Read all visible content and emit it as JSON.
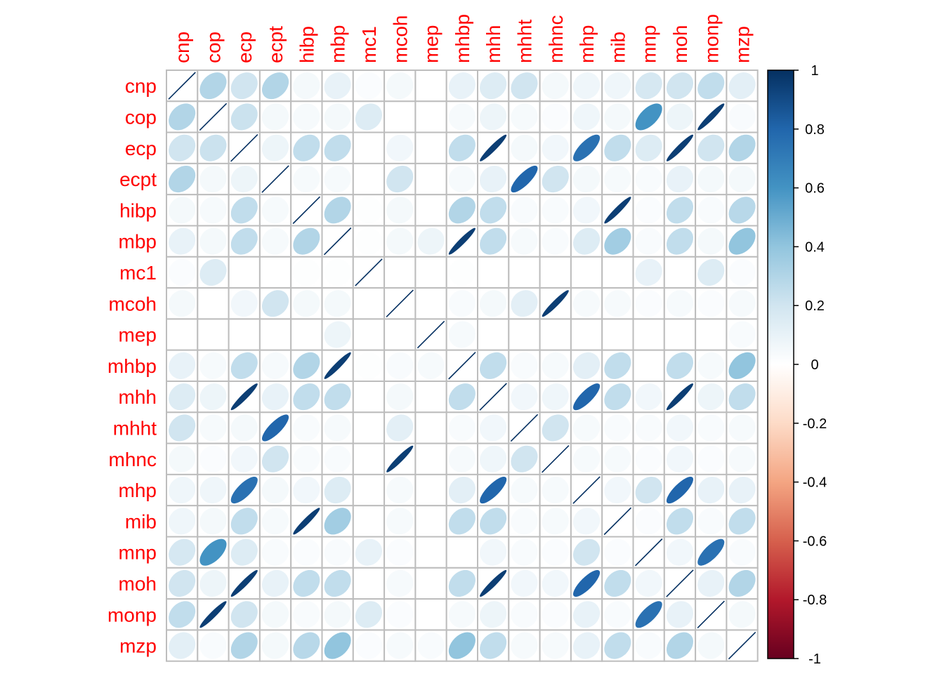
{
  "chart_data": {
    "type": "heatmap",
    "method": "ellipse",
    "variables": [
      "cnp",
      "cop",
      "ecp",
      "ecpt",
      "hibp",
      "mbp",
      "mc1",
      "mcoh",
      "mep",
      "mhbp",
      "mhh",
      "mhht",
      "mhnc",
      "mhp",
      "mib",
      "mnp",
      "moh",
      "monp",
      "mzp"
    ],
    "matrix": [
      [
        1.0,
        0.3,
        0.2,
        0.3,
        0.05,
        0.1,
        0.02,
        0.05,
        0.0,
        0.1,
        0.15,
        0.2,
        0.05,
        0.07,
        0.07,
        0.18,
        0.2,
        0.25,
        0.12
      ],
      [
        0.3,
        1.0,
        0.22,
        0.05,
        0.04,
        0.05,
        0.15,
        0.0,
        0.0,
        0.04,
        0.08,
        0.04,
        0.02,
        0.07,
        0.05,
        0.6,
        0.08,
        0.95,
        0.03
      ],
      [
        0.2,
        0.22,
        1.0,
        0.08,
        0.25,
        0.25,
        0.0,
        0.06,
        0.0,
        0.25,
        0.95,
        0.05,
        0.06,
        0.75,
        0.25,
        0.15,
        0.95,
        0.2,
        0.3
      ],
      [
        0.3,
        0.05,
        0.08,
        1.0,
        0.04,
        0.04,
        0.0,
        0.2,
        0.0,
        0.04,
        0.1,
        0.8,
        0.2,
        0.05,
        0.04,
        0.03,
        0.1,
        0.05,
        0.05
      ],
      [
        0.05,
        0.04,
        0.25,
        0.04,
        1.0,
        0.3,
        0.01,
        0.05,
        0.0,
        0.3,
        0.25,
        0.03,
        0.03,
        0.06,
        0.95,
        0.02,
        0.25,
        0.03,
        0.28
      ],
      [
        0.1,
        0.05,
        0.25,
        0.04,
        0.3,
        1.0,
        0.01,
        0.05,
        0.08,
        0.95,
        0.25,
        0.04,
        0.03,
        0.15,
        0.35,
        0.03,
        0.25,
        0.05,
        0.4
      ],
      [
        0.02,
        0.15,
        0.0,
        0.0,
        0.01,
        0.01,
        1.0,
        0.0,
        0.0,
        0.01,
        0.0,
        0.0,
        0.0,
        0.0,
        0.0,
        0.1,
        0.0,
        0.15,
        0.02
      ],
      [
        0.05,
        0.0,
        0.06,
        0.2,
        0.05,
        0.05,
        0.0,
        1.0,
        0.0,
        0.03,
        0.05,
        0.12,
        0.95,
        0.04,
        0.04,
        0.02,
        0.04,
        0.02,
        0.04
      ],
      [
        0.0,
        0.0,
        0.0,
        0.0,
        0.0,
        0.08,
        0.0,
        0.0,
        1.0,
        0.04,
        0.0,
        0.0,
        0.0,
        0.0,
        0.0,
        0.0,
        0.0,
        0.0,
        0.03
      ],
      [
        0.1,
        0.04,
        0.25,
        0.04,
        0.3,
        0.95,
        0.01,
        0.03,
        0.04,
        1.0,
        0.25,
        0.03,
        0.04,
        0.12,
        0.25,
        0.0,
        0.25,
        0.04,
        0.4
      ],
      [
        0.15,
        0.08,
        0.95,
        0.1,
        0.25,
        0.25,
        0.0,
        0.05,
        0.0,
        0.25,
        1.0,
        0.06,
        0.07,
        0.8,
        0.25,
        0.06,
        0.95,
        0.08,
        0.25
      ],
      [
        0.2,
        0.04,
        0.05,
        0.8,
        0.03,
        0.04,
        0.0,
        0.12,
        0.0,
        0.03,
        0.06,
        1.0,
        0.2,
        0.04,
        0.03,
        0.03,
        0.06,
        0.03,
        0.04
      ],
      [
        0.05,
        0.02,
        0.06,
        0.2,
        0.03,
        0.03,
        0.0,
        0.95,
        0.0,
        0.04,
        0.07,
        0.2,
        1.0,
        0.04,
        0.04,
        0.02,
        0.06,
        0.02,
        0.04
      ],
      [
        0.07,
        0.07,
        0.75,
        0.05,
        0.06,
        0.15,
        0.0,
        0.04,
        0.0,
        0.12,
        0.8,
        0.04,
        0.04,
        1.0,
        0.06,
        0.2,
        0.8,
        0.1,
        0.1
      ],
      [
        0.07,
        0.05,
        0.25,
        0.04,
        0.95,
        0.35,
        0.0,
        0.04,
        0.0,
        0.25,
        0.25,
        0.03,
        0.04,
        0.06,
        1.0,
        0.02,
        0.25,
        0.03,
        0.25
      ],
      [
        0.18,
        0.6,
        0.15,
        0.03,
        0.02,
        0.03,
        0.1,
        0.02,
        0.0,
        0.0,
        0.06,
        0.03,
        0.02,
        0.2,
        0.02,
        1.0,
        0.06,
        0.75,
        0.03
      ],
      [
        0.2,
        0.08,
        0.95,
        0.1,
        0.25,
        0.25,
        0.0,
        0.04,
        0.0,
        0.25,
        0.95,
        0.06,
        0.06,
        0.8,
        0.25,
        0.06,
        1.0,
        0.1,
        0.3
      ],
      [
        0.25,
        0.95,
        0.2,
        0.05,
        0.03,
        0.05,
        0.15,
        0.02,
        0.0,
        0.04,
        0.08,
        0.03,
        0.02,
        0.1,
        0.03,
        0.75,
        0.1,
        1.0,
        0.05
      ],
      [
        0.12,
        0.03,
        0.3,
        0.05,
        0.28,
        0.4,
        0.02,
        0.04,
        0.03,
        0.4,
        0.25,
        0.04,
        0.04,
        0.1,
        0.25,
        0.03,
        0.3,
        0.05,
        1.0
      ]
    ],
    "colorbar": {
      "ticks": [
        "1",
        "0.8",
        "0.6",
        "0.4",
        "0.2",
        "0",
        "-0.2",
        "-0.4",
        "-0.6",
        "-0.8",
        "-1"
      ],
      "range": [
        -1,
        1
      ],
      "colors": [
        "#67001F",
        "#B2182B",
        "#D6604D",
        "#F4A582",
        "#FDDBC7",
        "#FFFFFF",
        "#D1E5F0",
        "#92C5DE",
        "#4393C3",
        "#2166AC",
        "#053061"
      ]
    },
    "label_color": "#ff0000",
    "grid": true,
    "xlabel": "",
    "ylabel": "",
    "title": ""
  }
}
